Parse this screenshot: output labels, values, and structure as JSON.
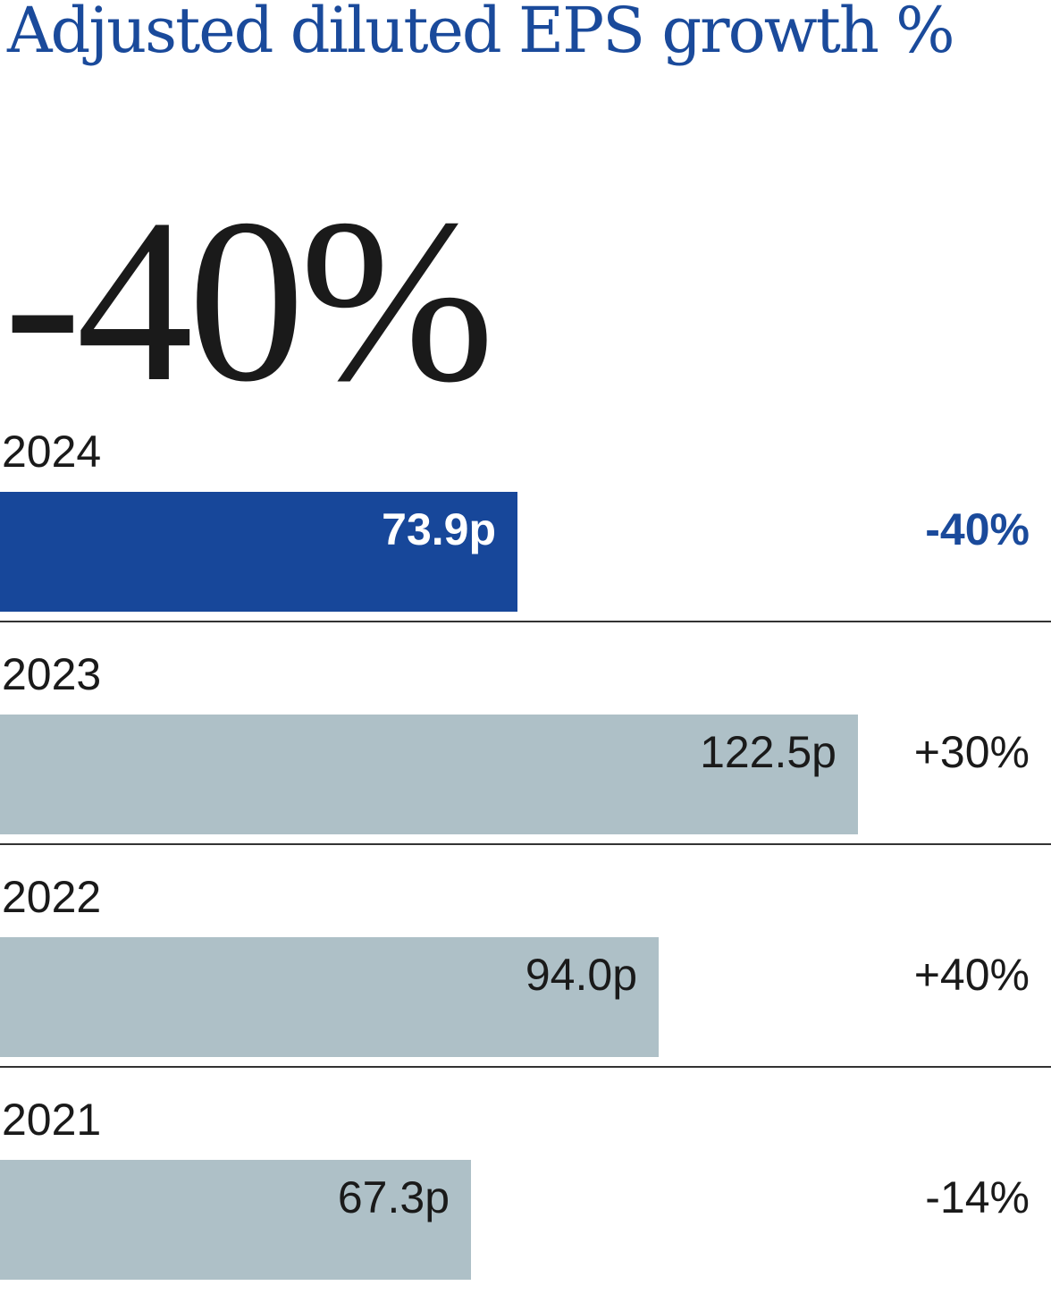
{
  "chart_data": {
    "type": "bar",
    "orientation": "horizontal",
    "title": "Adjusted diluted EPS growth %",
    "headline": "-40%",
    "categories": [
      "2024",
      "2023",
      "2022",
      "2021"
    ],
    "values": [
      73.9,
      122.5,
      94.0,
      67.3
    ],
    "value_labels": [
      "73.9p",
      "122.5p",
      "94.0p",
      "67.3p"
    ],
    "growth_labels": [
      "-40%",
      "+30%",
      "+40%",
      "-14%"
    ],
    "highlight_index": 0,
    "xlim": [
      0,
      150
    ],
    "grid": false
  },
  "colors": {
    "title": "#1a4a9b",
    "highlight_bar": "#17479a",
    "bar": "#aec0c7",
    "highlight_text": "#ffffff",
    "text": "#1a1a1a",
    "highlight_growth": "#1a4a9b",
    "divider": "#333333"
  }
}
